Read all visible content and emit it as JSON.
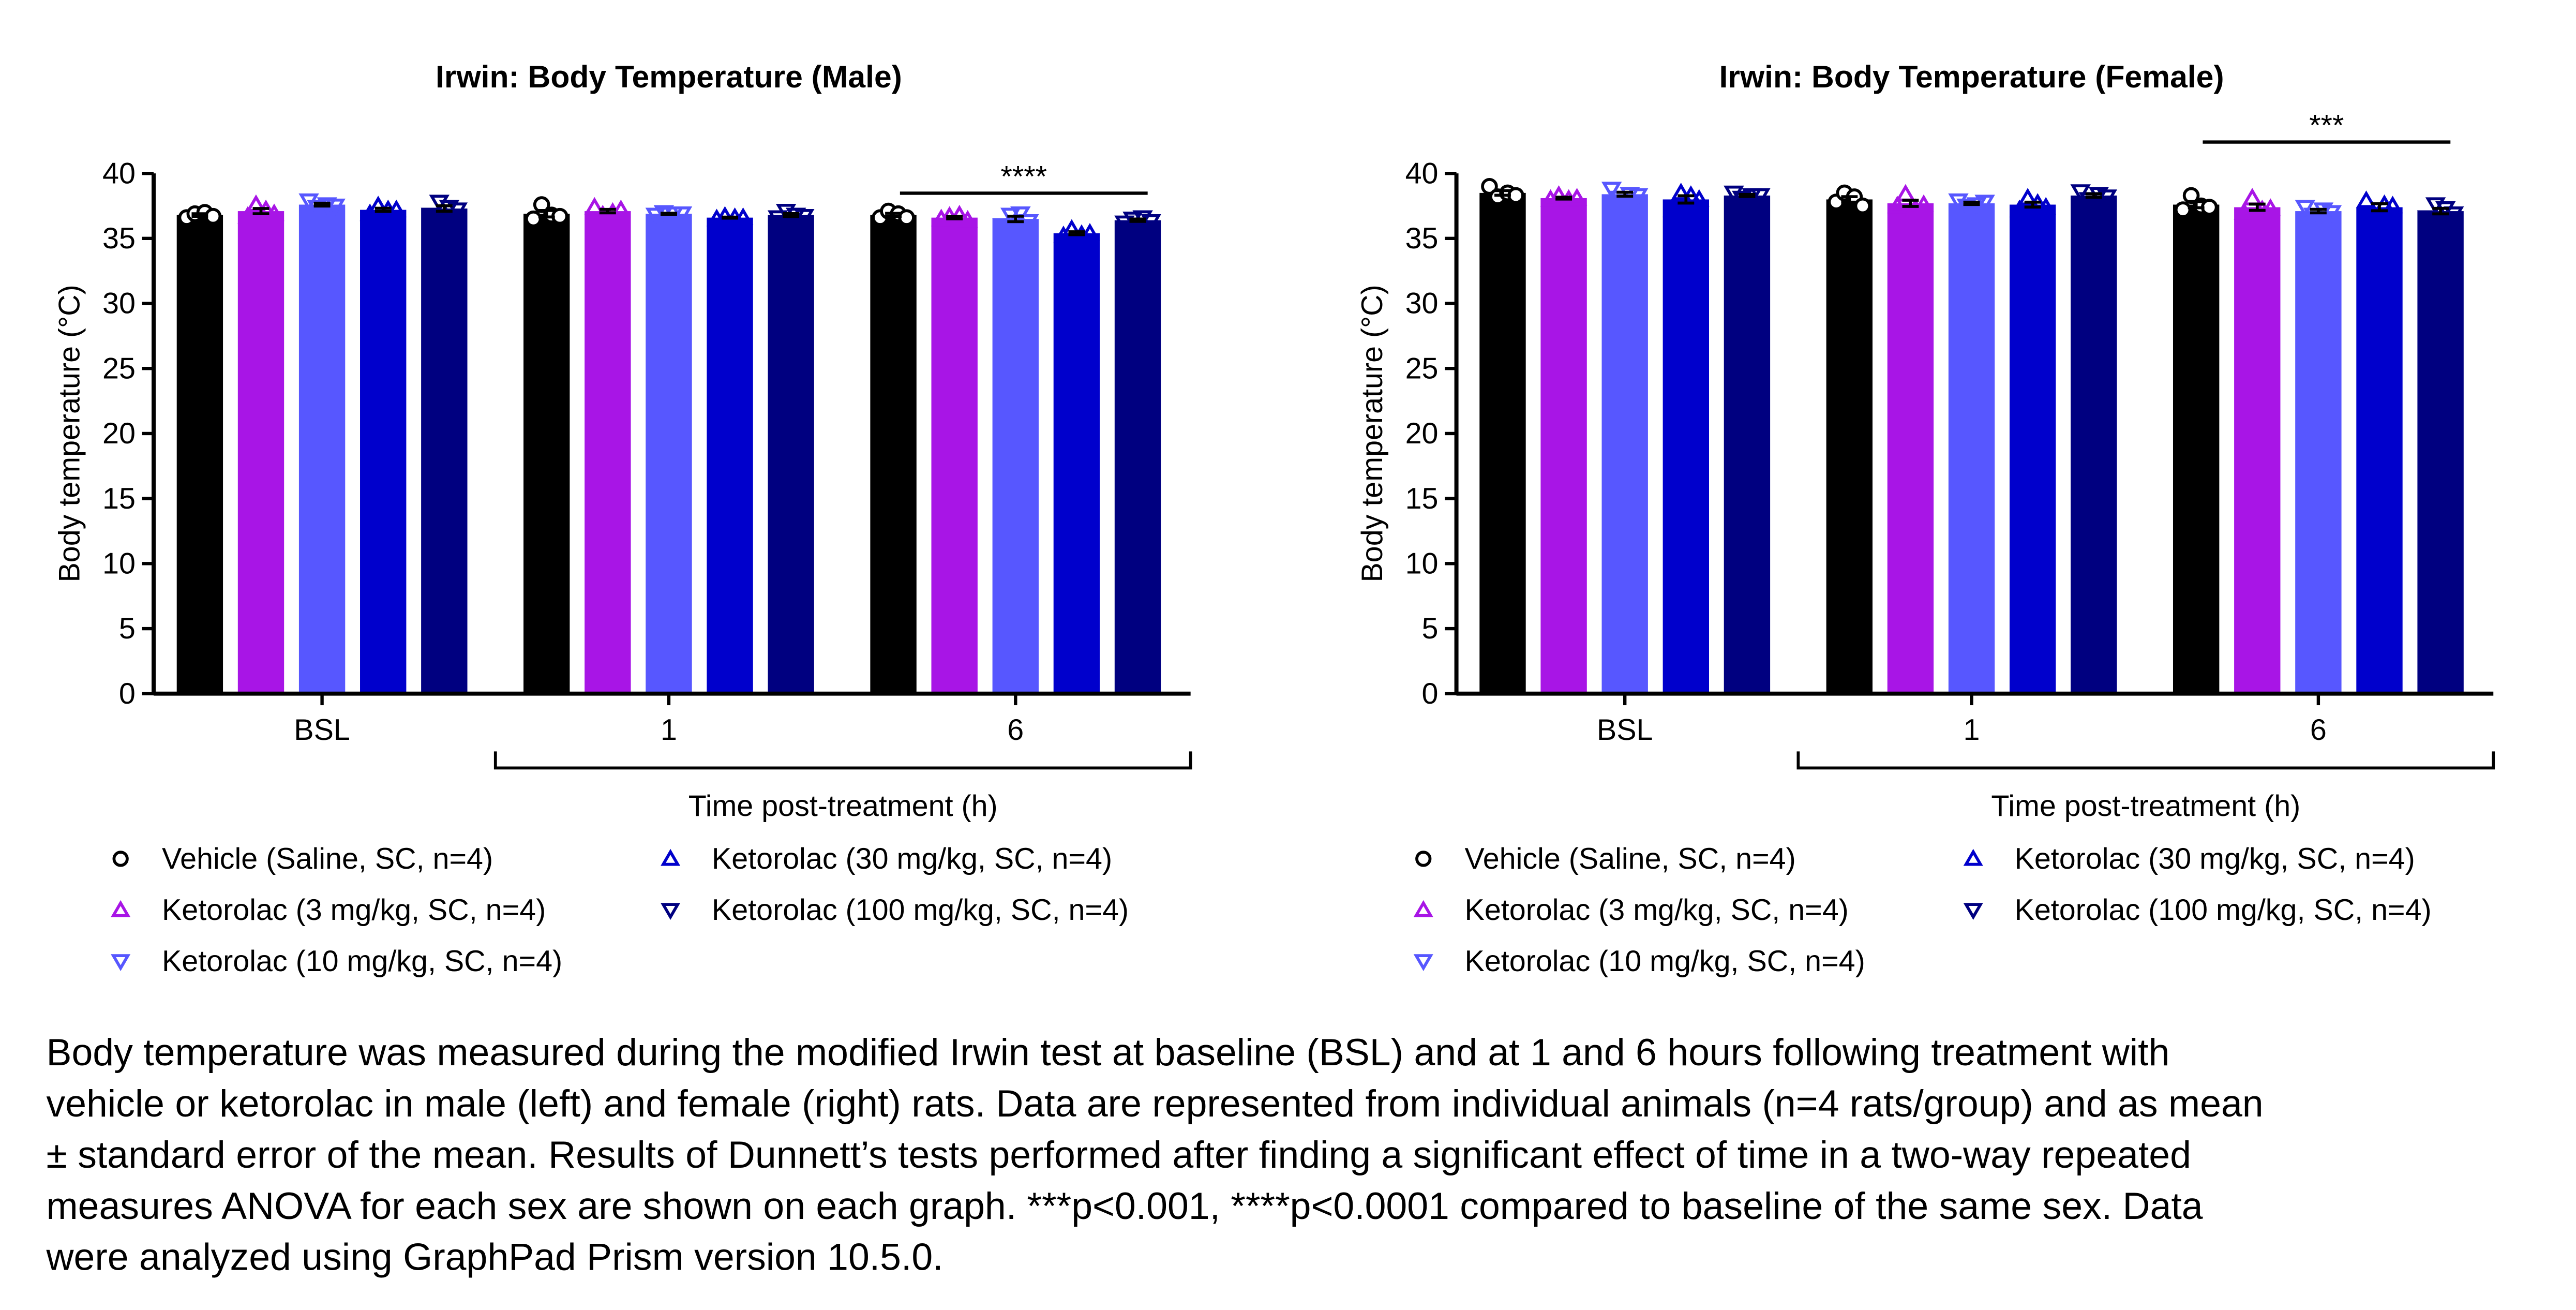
{
  "chart_data": [
    {
      "type": "bar",
      "title": "Irwin: Body Temperature (Male)",
      "ylabel": "Body temperature (°C)",
      "xlabel": "Time post-treatment (h)",
      "categories": [
        "BSL",
        "1",
        "6"
      ],
      "ylim": [
        0,
        40
      ],
      "yticks": [
        0,
        5,
        10,
        15,
        20,
        25,
        30,
        35,
        40
      ],
      "significance": "****",
      "series": [
        {
          "name": "Vehicle (Saline, SC, n=4)",
          "color": "#000000",
          "marker": "circle",
          "values": [
            36.8,
            36.9,
            36.8
          ],
          "errors": [
            0.1,
            0.25,
            0.13
          ],
          "points": [
            [
              36.6,
              36.9,
              37.0,
              36.7
            ],
            [
              36.5,
              37.6,
              36.8,
              36.7
            ],
            [
              36.6,
              37.1,
              36.9,
              36.6
            ]
          ]
        },
        {
          "name": "Ketorolac (3 mg/kg, SC, n=4)",
          "color": "#a815e6",
          "marker": "triangle-up",
          "values": [
            37.1,
            37.1,
            36.6
          ],
          "errors": [
            0.2,
            0.13,
            0.09
          ],
          "points": [
            [
              36.7,
              37.6,
              37.2,
              36.9
            ],
            [
              37.4,
              36.8,
              37.0,
              37.2
            ],
            [
              36.5,
              36.7,
              36.8,
              36.4
            ]
          ]
        },
        {
          "name": "Ketorolac (10 mg/kg, SC, n=4)",
          "color": "#5757ff",
          "marker": "triangle-down",
          "values": [
            37.6,
            36.9,
            36.5
          ],
          "errors": [
            0.11,
            0.04,
            0.21
          ],
          "points": [
            [
              37.9,
              37.4,
              37.6,
              37.5
            ],
            [
              36.8,
              37.0,
              36.9,
              36.9
            ],
            [
              36.0,
              36.8,
              36.9,
              36.3
            ]
          ]
        },
        {
          "name": "Ketorolac (30 mg/kg, SC, n=4)",
          "color": "#0000cc",
          "marker": "triangle-up",
          "values": [
            37.2,
            36.6,
            35.4
          ],
          "errors": [
            0.12,
            0.04,
            0.11
          ],
          "points": [
            [
              36.9,
              37.5,
              37.2,
              37.2
            ],
            [
              36.5,
              36.7,
              36.6,
              36.6
            ],
            [
              35.2,
              35.7,
              35.3,
              35.4
            ]
          ]
        },
        {
          "name": "Ketorolac (100 mg/kg, SC, n=4)",
          "color": "#000080",
          "marker": "triangle-down",
          "values": [
            37.3,
            36.8,
            36.4
          ],
          "errors": [
            0.21,
            0.11,
            0.09
          ],
          "points": [
            [
              36.8,
              37.8,
              37.4,
              37.2
            ],
            [
              36.6,
              37.1,
              36.8,
              36.7
            ],
            [
              36.2,
              36.5,
              36.6,
              36.3
            ]
          ]
        }
      ]
    },
    {
      "type": "bar",
      "title": "Irwin: Body Temperature (Female)",
      "ylabel": "Body temperature (°C)",
      "xlabel": "Time post-treatment (h)",
      "categories": [
        "BSL",
        "1",
        "6"
      ],
      "ylim": [
        0,
        40
      ],
      "yticks": [
        0,
        5,
        10,
        15,
        20,
        25,
        30,
        35,
        40
      ],
      "significance": "***",
      "series": [
        {
          "name": "Vehicle (Saline, SC, n=4)",
          "color": "#000000",
          "marker": "circle",
          "values": [
            38.5,
            38.0,
            37.6
          ],
          "errors": [
            0.18,
            0.21,
            0.24
          ],
          "points": [
            [
              39.0,
              38.2,
              38.5,
              38.3
            ],
            [
              37.8,
              38.5,
              38.2,
              37.5
            ],
            [
              37.2,
              38.3,
              37.5,
              37.4
            ]
          ]
        },
        {
          "name": "Ketorolac (3 mg/kg, SC, n=4)",
          "color": "#a815e6",
          "marker": "triangle-up",
          "values": [
            38.1,
            37.7,
            37.4
          ],
          "errors": [
            0.07,
            0.24,
            0.24
          ],
          "points": [
            [
              38.0,
              38.3,
              38.0,
              38.1
            ],
            [
              37.5,
              38.4,
              37.3,
              37.6
            ],
            [
              37.0,
              38.1,
              37.2,
              37.3
            ]
          ]
        },
        {
          "name": "Ketorolac (10 mg/kg, SC, n=4)",
          "color": "#5757ff",
          "marker": "triangle-down",
          "values": [
            38.4,
            37.7,
            37.1
          ],
          "errors": [
            0.15,
            0.09,
            0.13
          ],
          "points": [
            [
              38.8,
              38.1,
              38.4,
              38.3
            ],
            [
              37.9,
              37.5,
              37.6,
              37.8
            ],
            [
              37.4,
              36.8,
              37.2,
              37.0
            ]
          ]
        },
        {
          "name": "Ketorolac (30 mg/kg, SC, n=4)",
          "color": "#0000cc",
          "marker": "triangle-up",
          "values": [
            38.0,
            37.6,
            37.4
          ],
          "errors": [
            0.28,
            0.19,
            0.27
          ],
          "points": [
            [
              37.2,
              38.5,
              38.3,
              38.0
            ],
            [
              37.2,
              38.1,
              37.7,
              37.4
            ],
            [
              37.9,
              36.6,
              37.6,
              37.5
            ]
          ]
        },
        {
          "name": "Ketorolac (100 mg/kg, SC, n=4)",
          "color": "#000080",
          "marker": "triangle-down",
          "values": [
            38.3,
            38.3,
            37.1
          ],
          "errors": [
            0.08,
            0.13,
            0.21
          ],
          "points": [
            [
              38.5,
              38.1,
              38.3,
              38.3
            ],
            [
              38.6,
              38.0,
              38.4,
              38.2
            ],
            [
              36.6,
              37.6,
              37.3,
              36.9
            ]
          ]
        }
      ]
    }
  ],
  "caption_lines": [
    "Body temperature was measured during the modified Irwin test at baseline (BSL) and at 1 and 6 hours following treatment with",
    "vehicle or ketorolac in male (left) and female (right) rats. Data are represented from individual animals (n=4 rats/group) and as mean",
    "± standard error of the mean. Results of Dunnett’s tests performed after finding a significant effect of time in a two-way repeated",
    "measures ANOVA for each sex are shown on each graph. ***p<0.001, ****p<0.0001 compared to baseline of the same sex. Data",
    "were analyzed using GraphPad Prism version 10.5.0."
  ]
}
